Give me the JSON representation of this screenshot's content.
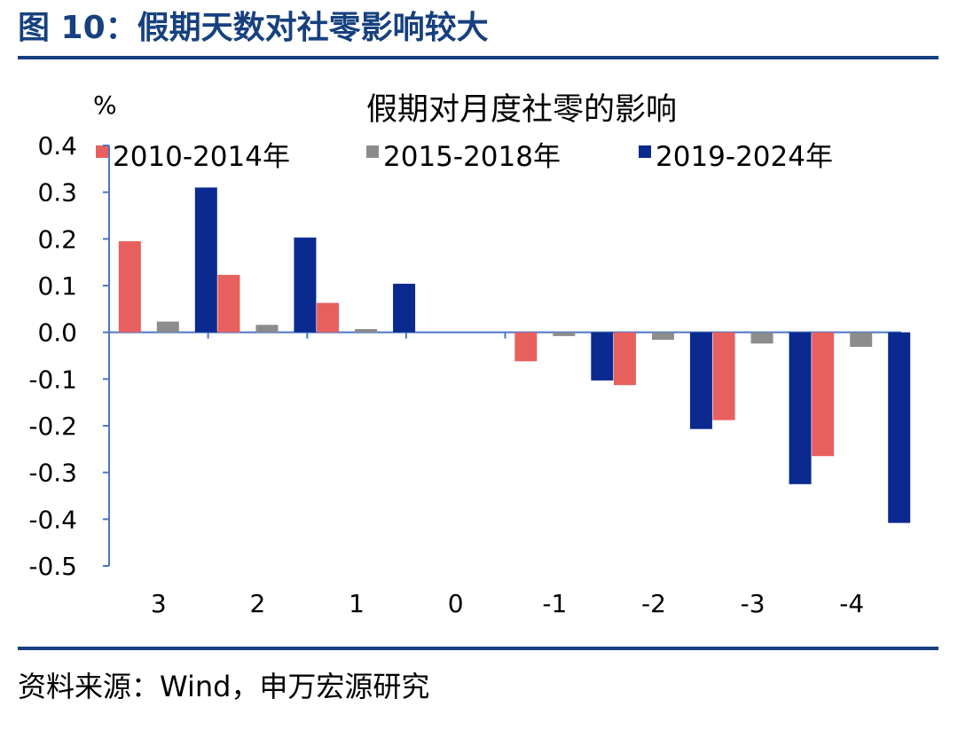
{
  "figure_title": "图 10：假期天数对社零影响较大",
  "source_note": "资料来源：Wind，申万宏源研究",
  "colors": {
    "brand": "#17407f",
    "axis": "#4a76c4"
  },
  "chart_data": {
    "type": "bar",
    "title": "假期对月度社零的影响",
    "ylabel": "%",
    "xlabel": "",
    "categories": [
      "3",
      "2",
      "1",
      "0",
      "-1",
      "-2",
      "-3",
      "-4"
    ],
    "ylim": [
      -0.5,
      0.4
    ],
    "yticks": [
      "0.4",
      "0.3",
      "0.2",
      "0.1",
      "0.0",
      "-0.1",
      "-0.2",
      "-0.3",
      "-0.4",
      "-0.5"
    ],
    "legend_position": "top",
    "series": [
      {
        "name": "2010-2014年",
        "color": "#e8605e",
        "values": [
          0.195,
          0.123,
          0.063,
          0.0,
          -0.062,
          -0.113,
          -0.188,
          -0.265
        ]
      },
      {
        "name": "2015-2018年",
        "color": "#8c8c8c",
        "values": [
          0.023,
          0.016,
          0.007,
          0.0,
          -0.008,
          -0.016,
          -0.024,
          -0.031
        ]
      },
      {
        "name": "2019-2024年",
        "color": "#0b2a8f",
        "values": [
          0.31,
          0.203,
          0.104,
          0.0,
          -0.103,
          -0.207,
          -0.325,
          -0.408
        ]
      }
    ]
  }
}
